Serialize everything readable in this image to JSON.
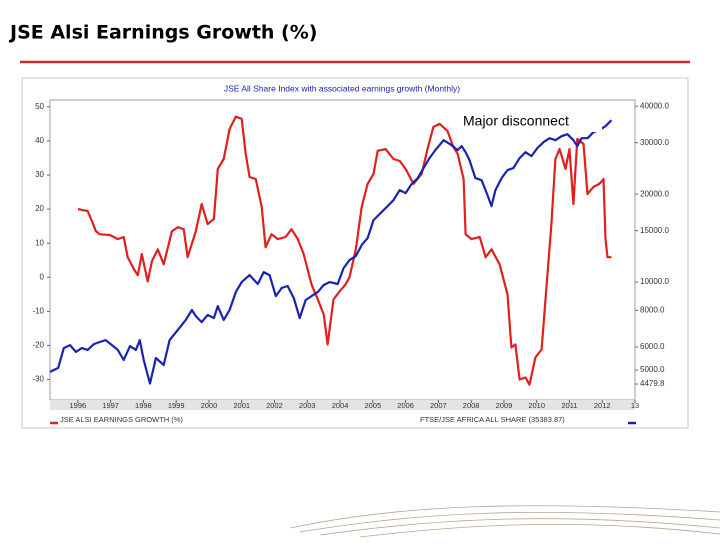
{
  "header": {
    "title": "JSE Alsi Earnings Growth (%)"
  },
  "chart_data": {
    "type": "line",
    "title": "JSE All Share Index with associated earnings growth (Monthly)",
    "annotation": "Major disconnect",
    "xlim": [
      1995.15,
      2013.0
    ],
    "xticks": [
      1996,
      1997,
      1998,
      1999,
      2000,
      2001,
      2002,
      2003,
      2004,
      2005,
      2006,
      2007,
      2008,
      2009,
      2010,
      2011,
      2012,
      {
        "value": 2013,
        "label": "13"
      }
    ],
    "ylim": [
      -36,
      52
    ],
    "yticks": [
      -30,
      -20,
      -10,
      0,
      10,
      20,
      30,
      40,
      50
    ],
    "y2lim": [
      3950,
      42000
    ],
    "y2log": true,
    "y2ticks": [
      {
        "value": 4479.8,
        "label": "4479.8"
      },
      {
        "value": 5000,
        "label": "5000.0"
      },
      {
        "value": 6000,
        "label": "6000.0"
      },
      {
        "value": 8000,
        "label": "8000.0"
      },
      {
        "value": 10000,
        "label": "10000.0"
      },
      {
        "value": 15000,
        "label": "15000.0"
      },
      {
        "value": 20000,
        "label": "20000.0"
      },
      {
        "value": 30000,
        "label": "30000.0"
      },
      {
        "value": 40000,
        "label": "40000.0"
      }
    ],
    "grid": false,
    "legend": "bottom",
    "series": [
      {
        "name": "JSE ALSI EARNINGS GROWTH (%)",
        "color": "#e0201b",
        "axis": "y",
        "x": [
          1996.0,
          1996.3,
          1996.43,
          1996.55,
          1996.67,
          1996.98,
          1997.22,
          1997.4,
          1997.52,
          1997.71,
          1997.83,
          1997.95,
          1998.13,
          1998.26,
          1998.44,
          1998.62,
          1998.87,
          1999.05,
          1999.23,
          1999.35,
          1999.6,
          1999.78,
          1999.96,
          2000.15,
          2000.27,
          2000.45,
          2000.63,
          2000.82,
          2001.0,
          2001.12,
          2001.24,
          2001.43,
          2001.61,
          2001.73,
          2001.91,
          2002.1,
          2002.34,
          2002.52,
          2002.71,
          2002.89,
          2003.13,
          2003.32,
          2003.5,
          2003.62,
          2003.8,
          2003.99,
          2004.17,
          2004.29,
          2004.48,
          2004.66,
          2004.84,
          2005.02,
          2005.15,
          2005.39,
          2005.63,
          2005.82,
          2006.0,
          2006.24,
          2006.49,
          2006.67,
          2006.85,
          2007.04,
          2007.28,
          2007.46,
          2007.59,
          2007.77,
          2007.83,
          2008.01,
          2008.26,
          2008.44,
          2008.62,
          2008.87,
          2009.11,
          2009.23,
          2009.35,
          2009.48,
          2009.66,
          2009.78,
          2009.96,
          2010.15,
          2010.27,
          2010.45,
          2010.57,
          2010.7,
          2010.88,
          2011.0,
          2011.12,
          2011.24,
          2011.43,
          2011.55,
          2011.73,
          2011.91,
          2012.04,
          2012.1,
          2012.16,
          2012.28
        ],
        "values": [
          20,
          19.4,
          16.5,
          13.5,
          12.6,
          12.4,
          11.2,
          11.8,
          5.9,
          2.4,
          0.6,
          6.8,
          -1.2,
          4.7,
          8.2,
          3.8,
          13.5,
          14.7,
          14.1,
          5.9,
          13.5,
          21.5,
          15.6,
          17.1,
          31.8,
          34.7,
          43.5,
          47.1,
          46.5,
          36.2,
          29.4,
          28.8,
          20.6,
          8.8,
          12.6,
          11.2,
          11.8,
          14.1,
          11.2,
          6.8,
          -2.1,
          -6.5,
          -10.9,
          -19.7,
          -6.5,
          -4.1,
          -2.1,
          0,
          8.2,
          20.6,
          27.4,
          30.3,
          37.1,
          37.6,
          34.7,
          34.1,
          31.8,
          27.4,
          30.3,
          37.6,
          44.1,
          45,
          42.9,
          38.2,
          36.2,
          28.8,
          12.6,
          11.2,
          11.8,
          5.9,
          8.2,
          3.8,
          -5,
          -20.6,
          -19.7,
          -30,
          -29.4,
          -31.5,
          -23.5,
          -21.2,
          -6.5,
          15.6,
          34.7,
          37.6,
          31.8,
          37.6,
          21.5,
          40.6,
          39.1,
          24.4,
          26.5,
          27.4,
          28.8,
          11.2,
          5.9,
          5.9
        ]
      },
      {
        "name": "FTSE/JSE AFRICA ALL SHARE (35383.87)",
        "color": "#1a23b0",
        "axis": "y2",
        "x": [
          1995.15,
          1995.4,
          1995.57,
          1995.76,
          1995.94,
          1996.12,
          1996.3,
          1996.49,
          1996.67,
          1996.85,
          1997.04,
          1997.22,
          1997.4,
          1997.59,
          1997.77,
          1997.89,
          1998.01,
          1998.2,
          1998.38,
          1998.62,
          1998.8,
          1999.05,
          1999.29,
          1999.48,
          1999.6,
          1999.78,
          1999.96,
          2000.15,
          2000.27,
          2000.45,
          2000.63,
          2000.82,
          2001.0,
          2001.24,
          2001.49,
          2001.67,
          2001.85,
          2002.04,
          2002.22,
          2002.4,
          2002.59,
          2002.77,
          2002.95,
          2003.13,
          2003.32,
          2003.5,
          2003.68,
          2003.93,
          2004.11,
          2004.29,
          2004.48,
          2004.66,
          2004.84,
          2005.02,
          2005.21,
          2005.39,
          2005.63,
          2005.82,
          2006.0,
          2006.18,
          2006.37,
          2006.55,
          2006.73,
          2006.91,
          2007.16,
          2007.4,
          2007.59,
          2007.71,
          2007.83,
          2007.95,
          2008.13,
          2008.32,
          2008.5,
          2008.62,
          2008.74,
          2008.93,
          2009.11,
          2009.29,
          2009.48,
          2009.66,
          2009.84,
          2010.02,
          2010.21,
          2010.39,
          2010.57,
          2010.76,
          2010.94,
          2011.12,
          2011.24,
          2011.37,
          2011.55,
          2011.73,
          2011.91,
          2012.1,
          2012.28
        ],
        "values": [
          4929,
          5086,
          5948,
          6088,
          5770,
          5948,
          5861,
          6138,
          6240,
          6335,
          6088,
          5861,
          5413,
          6040,
          5861,
          6335,
          5413,
          4500,
          5500,
          5205,
          6335,
          6856,
          7420,
          8028,
          7650,
          7300,
          7716,
          7537,
          8280,
          7420,
          8028,
          9245,
          10004,
          10570,
          9850,
          10825,
          10570,
          8960,
          9545,
          9696,
          8820,
          7537,
          8680,
          8960,
          9245,
          9777,
          10004,
          9850,
          11170,
          11895,
          12280,
          13390,
          14150,
          16300,
          17100,
          17920,
          19080,
          20650,
          20160,
          21640,
          22690,
          24550,
          26570,
          28300,
          30600,
          29430,
          28300,
          29200,
          27850,
          26150,
          22690,
          22330,
          19850,
          18210,
          20650,
          22690,
          24170,
          24550,
          26570,
          27850,
          26990,
          28730,
          30140,
          31090,
          30600,
          31580,
          32090,
          30600,
          29200,
          31090,
          31090,
          32590,
          33100,
          34170,
          35830
        ]
      }
    ]
  }
}
